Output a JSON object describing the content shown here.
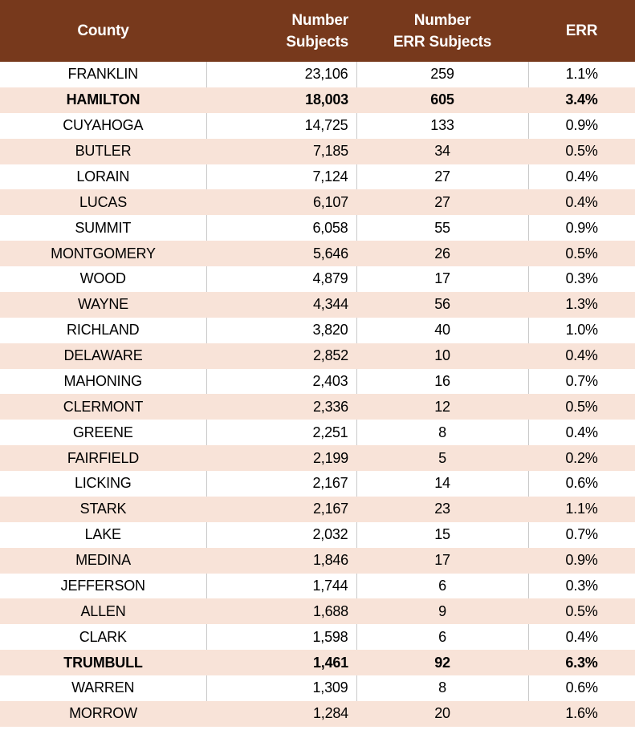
{
  "colors": {
    "header_background": "#77391c",
    "header_text": "#ffffff",
    "stripe_background": "#f8e3d8",
    "row_background": "#ffffff",
    "gridline": "#c9c9c9",
    "body_text": "#000000"
  },
  "table": {
    "header": {
      "col1": "County",
      "col2_line1": "Number",
      "col2_line2": "Subjects",
      "col3_line1": "Number",
      "col3_line2": "ERR Subjects",
      "col4": "ERR"
    },
    "rows": [
      {
        "county": "FRANKLIN",
        "number_subjects": "23,106",
        "number_err_subjects": "259",
        "err": "1.1%",
        "bold": false
      },
      {
        "county": "HAMILTON",
        "number_subjects": "18,003",
        "number_err_subjects": "605",
        "err": "3.4%",
        "bold": true
      },
      {
        "county": "CUYAHOGA",
        "number_subjects": "14,725",
        "number_err_subjects": "133",
        "err": "0.9%",
        "bold": false
      },
      {
        "county": "BUTLER",
        "number_subjects": "7,185",
        "number_err_subjects": "34",
        "err": "0.5%",
        "bold": false
      },
      {
        "county": "LORAIN",
        "number_subjects": "7,124",
        "number_err_subjects": "27",
        "err": "0.4%",
        "bold": false
      },
      {
        "county": "LUCAS",
        "number_subjects": "6,107",
        "number_err_subjects": "27",
        "err": "0.4%",
        "bold": false
      },
      {
        "county": "SUMMIT",
        "number_subjects": "6,058",
        "number_err_subjects": "55",
        "err": "0.9%",
        "bold": false
      },
      {
        "county": "MONTGOMERY",
        "number_subjects": "5,646",
        "number_err_subjects": "26",
        "err": "0.5%",
        "bold": false
      },
      {
        "county": "WOOD",
        "number_subjects": "4,879",
        "number_err_subjects": "17",
        "err": "0.3%",
        "bold": false
      },
      {
        "county": "WAYNE",
        "number_subjects": "4,344",
        "number_err_subjects": "56",
        "err": "1.3%",
        "bold": false
      },
      {
        "county": "RICHLAND",
        "number_subjects": "3,820",
        "number_err_subjects": "40",
        "err": "1.0%",
        "bold": false
      },
      {
        "county": "DELAWARE",
        "number_subjects": "2,852",
        "number_err_subjects": "10",
        "err": "0.4%",
        "bold": false
      },
      {
        "county": "MAHONING",
        "number_subjects": "2,403",
        "number_err_subjects": "16",
        "err": "0.7%",
        "bold": false
      },
      {
        "county": "CLERMONT",
        "number_subjects": "2,336",
        "number_err_subjects": "12",
        "err": "0.5%",
        "bold": false
      },
      {
        "county": "GREENE",
        "number_subjects": "2,251",
        "number_err_subjects": "8",
        "err": "0.4%",
        "bold": false
      },
      {
        "county": "FAIRFIELD",
        "number_subjects": "2,199",
        "number_err_subjects": "5",
        "err": "0.2%",
        "bold": false
      },
      {
        "county": "LICKING",
        "number_subjects": "2,167",
        "number_err_subjects": "14",
        "err": "0.6%",
        "bold": false
      },
      {
        "county": "STARK",
        "number_subjects": "2,167",
        "number_err_subjects": "23",
        "err": "1.1%",
        "bold": false
      },
      {
        "county": "LAKE",
        "number_subjects": "2,032",
        "number_err_subjects": "15",
        "err": "0.7%",
        "bold": false
      },
      {
        "county": "MEDINA",
        "number_subjects": "1,846",
        "number_err_subjects": "17",
        "err": "0.9%",
        "bold": false
      },
      {
        "county": "JEFFERSON",
        "number_subjects": "1,744",
        "number_err_subjects": "6",
        "err": "0.3%",
        "bold": false
      },
      {
        "county": "ALLEN",
        "number_subjects": "1,688",
        "number_err_subjects": "9",
        "err": "0.5%",
        "bold": false
      },
      {
        "county": "CLARK",
        "number_subjects": "1,598",
        "number_err_subjects": "6",
        "err": "0.4%",
        "bold": false
      },
      {
        "county": "TRUMBULL",
        "number_subjects": "1,461",
        "number_err_subjects": "92",
        "err": "6.3%",
        "bold": true
      },
      {
        "county": "WARREN",
        "number_subjects": "1,309",
        "number_err_subjects": "8",
        "err": "0.6%",
        "bold": false
      },
      {
        "county": "MORROW",
        "number_subjects": "1,284",
        "number_err_subjects": "20",
        "err": "1.6%",
        "bold": false
      }
    ]
  },
  "chart_data": {
    "type": "table",
    "columns": [
      "County",
      "Number Subjects",
      "Number ERR Subjects",
      "ERR"
    ],
    "rows": [
      [
        "FRANKLIN",
        23106,
        259,
        "1.1%"
      ],
      [
        "HAMILTON",
        18003,
        605,
        "3.4%"
      ],
      [
        "CUYAHOGA",
        14725,
        133,
        "0.9%"
      ],
      [
        "BUTLER",
        7185,
        34,
        "0.5%"
      ],
      [
        "LORAIN",
        7124,
        27,
        "0.4%"
      ],
      [
        "LUCAS",
        6107,
        27,
        "0.4%"
      ],
      [
        "SUMMIT",
        6058,
        55,
        "0.9%"
      ],
      [
        "MONTGOMERY",
        5646,
        26,
        "0.5%"
      ],
      [
        "WOOD",
        4879,
        17,
        "0.3%"
      ],
      [
        "WAYNE",
        4344,
        56,
        "1.3%"
      ],
      [
        "RICHLAND",
        3820,
        40,
        "1.0%"
      ],
      [
        "DELAWARE",
        2852,
        10,
        "0.4%"
      ],
      [
        "MAHONING",
        2403,
        16,
        "0.7%"
      ],
      [
        "CLERMONT",
        2336,
        12,
        "0.5%"
      ],
      [
        "GREENE",
        2251,
        8,
        "0.4%"
      ],
      [
        "FAIRFIELD",
        2199,
        5,
        "0.2%"
      ],
      [
        "LICKING",
        2167,
        14,
        "0.6%"
      ],
      [
        "STARK",
        2167,
        23,
        "1.1%"
      ],
      [
        "LAKE",
        2032,
        15,
        "0.7%"
      ],
      [
        "MEDINA",
        1846,
        17,
        "0.9%"
      ],
      [
        "JEFFERSON",
        1744,
        6,
        "0.3%"
      ],
      [
        "ALLEN",
        1688,
        9,
        "0.5%"
      ],
      [
        "CLARK",
        1598,
        6,
        "0.4%"
      ],
      [
        "TRUMBULL",
        1461,
        92,
        "6.3%"
      ],
      [
        "WARREN",
        1309,
        8,
        "0.6%"
      ],
      [
        "MORROW",
        1284,
        20,
        "1.6%"
      ]
    ],
    "highlighted_rows": [
      "HAMILTON",
      "TRUMBULL"
    ],
    "layout": "striped table, alternating white/peach rows, brown header, bold highlighted rows"
  }
}
